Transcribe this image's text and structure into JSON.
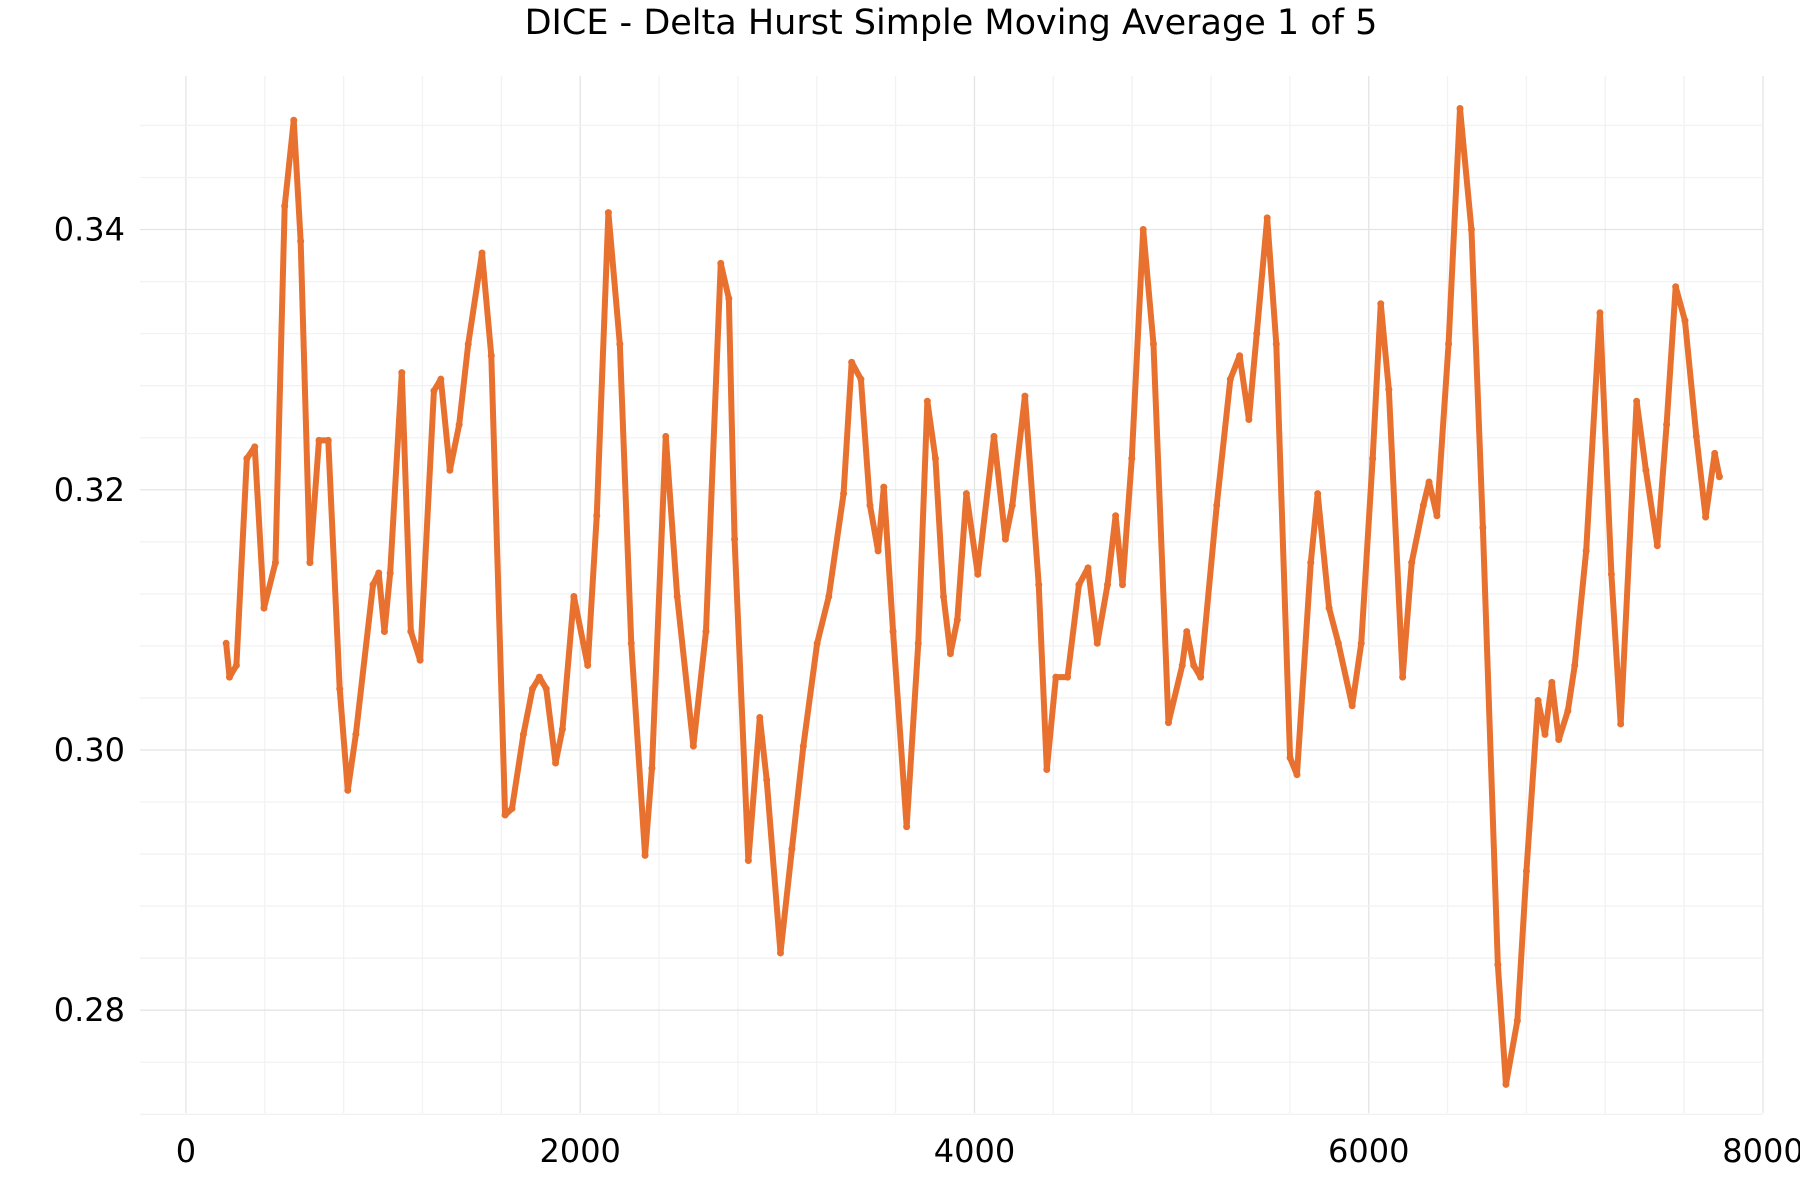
{
  "chart_data": {
    "type": "scatter",
    "title": "DICE - Delta Hurst Simple Moving Average 1 of 5",
    "xlabel": "",
    "ylabel": "",
    "xlim": [
      -233,
      8000
    ],
    "ylim": [
      0.2721,
      0.3518
    ],
    "x_ticks": [
      0,
      2000,
      4000,
      6000,
      8000
    ],
    "x_tick_labels": [
      "0",
      "2000",
      "4000",
      "6000",
      "8000"
    ],
    "y_ticks": [
      0.28,
      0.3,
      0.32,
      0.34
    ],
    "y_tick_labels": [
      "0.28",
      "0.30",
      "0.32",
      "0.34"
    ],
    "grid": true,
    "legend": "none",
    "series_color": "#E8712F",
    "series": [
      {
        "points": [
          [
            204,
            0.3082
          ],
          [
            221,
            0.3056
          ],
          [
            256,
            0.3065
          ],
          [
            309,
            0.3224
          ],
          [
            349,
            0.3233
          ],
          [
            396,
            0.3109
          ],
          [
            454,
            0.3144
          ],
          [
            501,
            0.3418
          ],
          [
            547,
            0.3484
          ],
          [
            582,
            0.3391
          ],
          [
            629,
            0.3144
          ],
          [
            675,
            0.3238
          ],
          [
            722,
            0.3238
          ],
          [
            780,
            0.3047
          ],
          [
            821,
            0.2969
          ],
          [
            862,
            0.3012
          ],
          [
            949,
            0.3127
          ],
          [
            978,
            0.3136
          ],
          [
            1007,
            0.3091
          ],
          [
            1036,
            0.3136
          ],
          [
            1095,
            0.329
          ],
          [
            1141,
            0.3091
          ],
          [
            1188,
            0.3069
          ],
          [
            1258,
            0.3276
          ],
          [
            1293,
            0.3285
          ],
          [
            1339,
            0.3215
          ],
          [
            1386,
            0.325
          ],
          [
            1432,
            0.3312
          ],
          [
            1502,
            0.3382
          ],
          [
            1549,
            0.3303
          ],
          [
            1619,
            0.295
          ],
          [
            1654,
            0.2955
          ],
          [
            1712,
            0.3012
          ],
          [
            1758,
            0.3047
          ],
          [
            1793,
            0.3056
          ],
          [
            1828,
            0.3047
          ],
          [
            1875,
            0.299
          ],
          [
            1910,
            0.3016
          ],
          [
            1968,
            0.3118
          ],
          [
            2038,
            0.3065
          ],
          [
            2084,
            0.318
          ],
          [
            2143,
            0.3413
          ],
          [
            2201,
            0.3312
          ],
          [
            2259,
            0.3082
          ],
          [
            2329,
            0.2919
          ],
          [
            2364,
            0.2986
          ],
          [
            2434,
            0.3241
          ],
          [
            2492,
            0.3118
          ],
          [
            2574,
            0.3003
          ],
          [
            2638,
            0.3091
          ],
          [
            2713,
            0.3374
          ],
          [
            2754,
            0.3347
          ],
          [
            2783,
            0.3162
          ],
          [
            2853,
            0.2915
          ],
          [
            2911,
            0.3025
          ],
          [
            2946,
            0.2977
          ],
          [
            3016,
            0.2844
          ],
          [
            3074,
            0.2924
          ],
          [
            3132,
            0.3003
          ],
          [
            3202,
            0.3082
          ],
          [
            3261,
            0.3118
          ],
          [
            3336,
            0.3197
          ],
          [
            3377,
            0.3298
          ],
          [
            3424,
            0.3285
          ],
          [
            3470,
            0.3188
          ],
          [
            3511,
            0.3153
          ],
          [
            3540,
            0.3202
          ],
          [
            3587,
            0.3091
          ],
          [
            3656,
            0.2941
          ],
          [
            3715,
            0.3082
          ],
          [
            3761,
            0.3268
          ],
          [
            3802,
            0.3224
          ],
          [
            3843,
            0.3118
          ],
          [
            3878,
            0.3074
          ],
          [
            3913,
            0.31
          ],
          [
            3959,
            0.3197
          ],
          [
            4017,
            0.3135
          ],
          [
            4099,
            0.3241
          ],
          [
            4157,
            0.3162
          ],
          [
            4192,
            0.3188
          ],
          [
            4256,
            0.3272
          ],
          [
            4326,
            0.3127
          ],
          [
            4367,
            0.2985
          ],
          [
            4413,
            0.3056
          ],
          [
            4472,
            0.3056
          ],
          [
            4530,
            0.3127
          ],
          [
            4576,
            0.314
          ],
          [
            4623,
            0.3082
          ],
          [
            4675,
            0.3127
          ],
          [
            4716,
            0.318
          ],
          [
            4751,
            0.3127
          ],
          [
            4798,
            0.3224
          ],
          [
            4856,
            0.34
          ],
          [
            4908,
            0.3312
          ],
          [
            4984,
            0.3021
          ],
          [
            5054,
            0.3065
          ],
          [
            5077,
            0.3091
          ],
          [
            5112,
            0.3065
          ],
          [
            5147,
            0.3056
          ],
          [
            5229,
            0.3188
          ],
          [
            5298,
            0.3285
          ],
          [
            5345,
            0.3303
          ],
          [
            5392,
            0.3254
          ],
          [
            5432,
            0.332
          ],
          [
            5485,
            0.3409
          ],
          [
            5531,
            0.3312
          ],
          [
            5601,
            0.2994
          ],
          [
            5636,
            0.2981
          ],
          [
            5706,
            0.3144
          ],
          [
            5741,
            0.3197
          ],
          [
            5799,
            0.3109
          ],
          [
            5846,
            0.3082
          ],
          [
            5916,
            0.3034
          ],
          [
            5962,
            0.3082
          ],
          [
            6020,
            0.3224
          ],
          [
            6061,
            0.3343
          ],
          [
            6102,
            0.3277
          ],
          [
            6172,
            0.3056
          ],
          [
            6218,
            0.3144
          ],
          [
            6277,
            0.3188
          ],
          [
            6306,
            0.3206
          ],
          [
            6346,
            0.318
          ],
          [
            6405,
            0.3312
          ],
          [
            6463,
            0.3493
          ],
          [
            6521,
            0.34
          ],
          [
            6579,
            0.3171
          ],
          [
            6655,
            0.2835
          ],
          [
            6696,
            0.2743
          ],
          [
            6754,
            0.2792
          ],
          [
            6800,
            0.2907
          ],
          [
            6859,
            0.3038
          ],
          [
            6894,
            0.3012
          ],
          [
            6929,
            0.3052
          ],
          [
            6964,
            0.3008
          ],
          [
            7010,
            0.303
          ],
          [
            7045,
            0.3065
          ],
          [
            7103,
            0.3153
          ],
          [
            7173,
            0.3336
          ],
          [
            7231,
            0.3135
          ],
          [
            7278,
            0.302
          ],
          [
            7359,
            0.3268
          ],
          [
            7406,
            0.3215
          ],
          [
            7464,
            0.3157
          ],
          [
            7511,
            0.325
          ],
          [
            7557,
            0.3356
          ],
          [
            7604,
            0.333
          ],
          [
            7662,
            0.3241
          ],
          [
            7709,
            0.3179
          ],
          [
            7755,
            0.3228
          ],
          [
            7779,
            0.321
          ]
        ]
      }
    ]
  }
}
